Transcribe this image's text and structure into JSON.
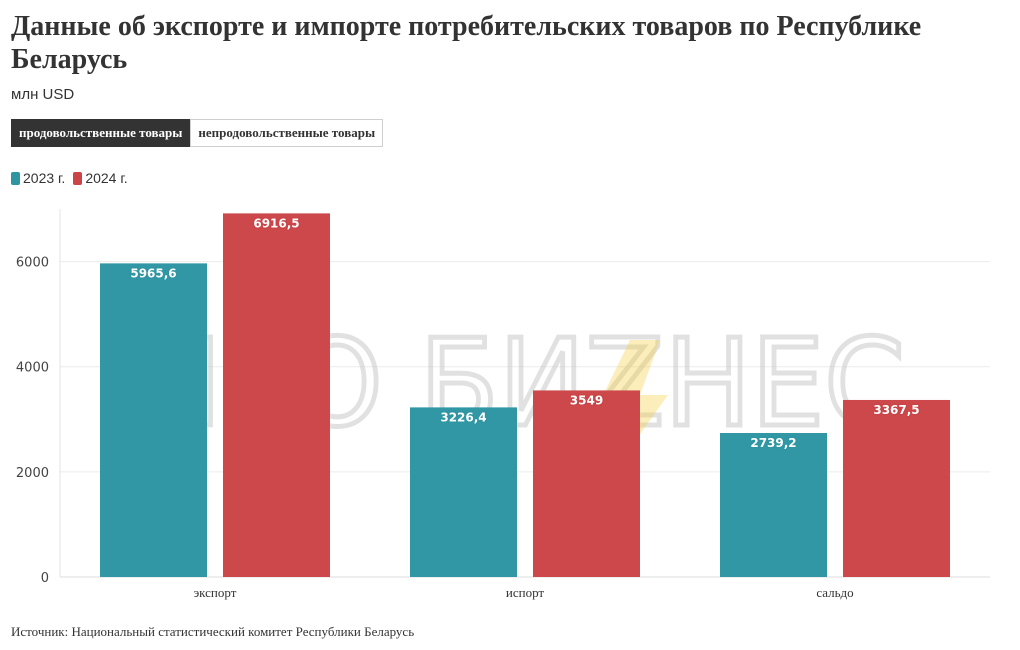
{
  "title": "Данные об экспорте и импорте потребительских товаров по Республике Беларусь",
  "subtitle": "млн USD",
  "tabs": [
    {
      "label": "продовольственные товары",
      "active": true
    },
    {
      "label": "непродовольственные товары",
      "active": false
    }
  ],
  "legend": [
    {
      "label": "2023 г.",
      "color": "#2e95a3"
    },
    {
      "label": "2024 г.",
      "color": "#cb4447"
    }
  ],
  "footer": "Источник: Национальный статистический комитет Республики Беларусь",
  "watermark": "ПРО БИZНЕС",
  "chart_data": {
    "type": "bar",
    "categories": [
      "экспорт",
      "испорт",
      "сальдо"
    ],
    "series": [
      {
        "name": "2023 г.",
        "color": "#2e95a3",
        "values": [
          5965.6,
          3226.4,
          2739.2
        ],
        "labels": [
          "5965,6",
          "3226,4",
          "2739,2"
        ]
      },
      {
        "name": "2024 г.",
        "color": "#cb4447",
        "values": [
          6916.5,
          3549,
          3367.5
        ],
        "labels": [
          "6916,5",
          "3549",
          "3367,5"
        ]
      }
    ],
    "yticks": [
      0,
      2000,
      4000,
      6000
    ],
    "ylim": [
      0,
      7000
    ],
    "grid": true,
    "legend_position": "top-left"
  }
}
